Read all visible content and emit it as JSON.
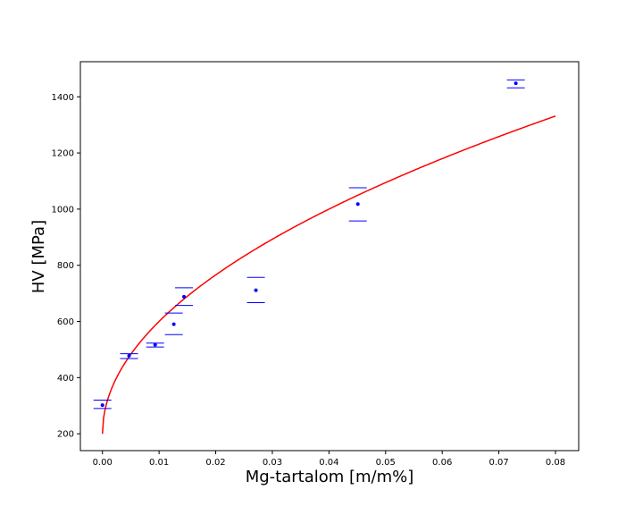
{
  "chart_data": {
    "type": "scatter",
    "title": "",
    "xlabel": "Mg-tartalom [m/m%]",
    "ylabel": "HV [MPa]",
    "xlim": [
      -0.0039,
      0.0841
    ],
    "ylim": [
      140,
      1525
    ],
    "xticks": [
      0.0,
      0.01,
      0.02,
      0.03,
      0.04,
      0.05,
      0.06,
      0.07,
      0.08
    ],
    "xtick_labels": [
      "0.00",
      "0.01",
      "0.02",
      "0.03",
      "0.04",
      "0.05",
      "0.06",
      "0.07",
      "0.08"
    ],
    "yticks": [
      200,
      400,
      600,
      800,
      1000,
      1200,
      1400
    ],
    "ytick_labels": [
      "200",
      "400",
      "600",
      "800",
      "1000",
      "1200",
      "1400"
    ],
    "grid": false,
    "series": [
      {
        "kind": "points_with_error_caps",
        "color": "#0000ff",
        "points": [
          {
            "x": 0.0,
            "y": 302,
            "y_low": 290,
            "y_high": 320
          },
          {
            "x": 0.0047,
            "y": 478,
            "y_low": 468,
            "y_high": 485
          },
          {
            "x": 0.0093,
            "y": 517,
            "y_low": 509,
            "y_high": 523
          },
          {
            "x": 0.0126,
            "y": 590,
            "y_low": 553,
            "y_high": 630
          },
          {
            "x": 0.0144,
            "y": 688,
            "y_low": 657,
            "y_high": 720
          },
          {
            "x": 0.0271,
            "y": 711,
            "y_low": 667,
            "y_high": 757
          },
          {
            "x": 0.0451,
            "y": 1018,
            "y_low": 958,
            "y_high": 1076
          },
          {
            "x": 0.073,
            "y": 1448,
            "y_low": 1432,
            "y_high": 1460
          }
        ]
      },
      {
        "kind": "fit_curve",
        "color": "#ff0000",
        "model": "y = a + b * sqrt(x)",
        "a": 200,
        "b": 4000,
        "x_range": [
          0.0,
          0.08
        ]
      }
    ]
  }
}
